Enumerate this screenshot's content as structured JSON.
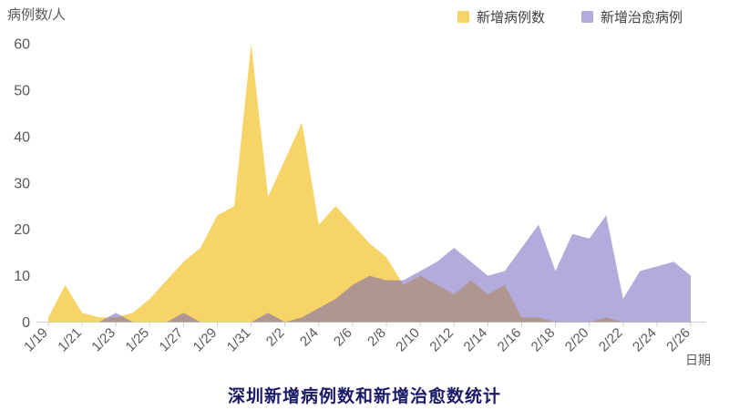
{
  "chart_data": {
    "type": "area",
    "title": "深圳新增病例数和新增治愈数统计",
    "title_color": "#1a1a66",
    "y_axis_title": "病例数/人",
    "x_axis_title": "日期",
    "axis_text_color": "#595959",
    "axis_line_color": "#cccccc",
    "grid": false,
    "legend_position": "top-right",
    "ylim": [
      0,
      60
    ],
    "y_ticks": [
      0,
      10,
      20,
      30,
      40,
      50,
      60
    ],
    "x_label_every": 2,
    "x": [
      "1/19",
      "1/20",
      "1/21",
      "1/22",
      "1/23",
      "1/24",
      "1/25",
      "1/26",
      "1/27",
      "1/28",
      "1/29",
      "1/30",
      "1/31",
      "2/1",
      "2/2",
      "2/3",
      "2/4",
      "2/5",
      "2/6",
      "2/7",
      "2/8",
      "2/9",
      "2/10",
      "2/11",
      "2/12",
      "2/13",
      "2/14",
      "2/15",
      "2/16",
      "2/17",
      "2/18",
      "2/19",
      "2/20",
      "2/21",
      "2/22",
      "2/23",
      "2/24",
      "2/25",
      "2/26"
    ],
    "series": [
      {
        "name": "新增病例数",
        "color": "#F7D467",
        "fill_opacity": 1,
        "values": [
          1,
          8,
          2,
          1,
          1,
          2,
          5,
          9,
          13,
          16,
          23,
          25,
          60,
          27,
          35,
          43,
          21,
          25,
          21,
          17,
          14,
          8,
          10,
          8,
          6,
          9,
          6,
          8,
          1,
          1,
          0,
          0,
          0,
          1,
          0,
          0,
          0,
          0,
          0
        ]
      },
      {
        "name": "新增治愈病例",
        "color": "#6858BA",
        "fill_opacity": 0.5,
        "values": [
          0,
          0,
          0,
          0,
          2,
          0,
          0,
          0,
          2,
          0,
          0,
          0,
          0,
          2,
          0,
          1,
          3,
          5,
          8,
          10,
          9,
          9,
          11,
          13,
          16,
          13,
          10,
          11,
          16,
          21,
          11,
          19,
          18,
          23,
          5,
          11,
          12,
          13,
          10
        ]
      }
    ]
  }
}
